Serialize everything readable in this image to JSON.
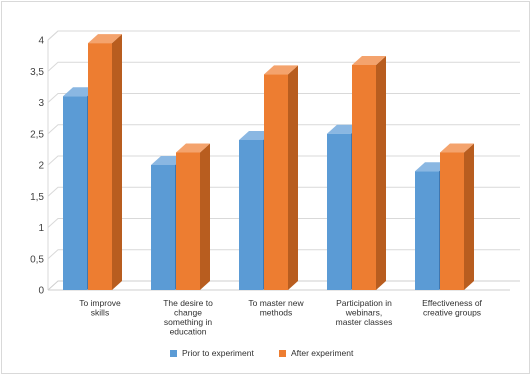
{
  "chart_data": {
    "type": "bar",
    "style": "3d-clustered-column",
    "categories": [
      "To improve skills",
      "The desire to change something in education",
      "To master new methods",
      "Participation in webinars, master classes",
      "Effectiveness of creative groups"
    ],
    "category_lines": [
      [
        "To improve",
        "skills"
      ],
      [
        "The desire to",
        "change",
        "something in",
        "education"
      ],
      [
        "To master new",
        "methods"
      ],
      [
        "Participation in",
        "webinars,",
        "master classes"
      ],
      [
        "Effectiveness of",
        "creative groups"
      ]
    ],
    "series": [
      {
        "name": "Prior to experiment",
        "values": [
          3.1,
          2.0,
          2.4,
          2.5,
          1.9
        ]
      },
      {
        "name": "After experiment",
        "values": [
          3.95,
          2.2,
          3.45,
          3.6,
          2.2
        ]
      }
    ],
    "ylim": [
      0,
      4
    ],
    "yticks": [
      "0",
      "0,5",
      "1",
      "1,5",
      "2",
      "2,5",
      "3",
      "3,5",
      "4"
    ],
    "legend_position": "bottom",
    "grid": true,
    "colors": {
      "prior_front": "#5b9bd5",
      "prior_top": "#8ab7e2",
      "prior_side": "#3f77b0",
      "after_front": "#ed7d31",
      "after_top": "#f4a36d",
      "after_side": "#b85d1f",
      "grid": "#d9d9d9",
      "floor": "#cfcfcf"
    }
  }
}
